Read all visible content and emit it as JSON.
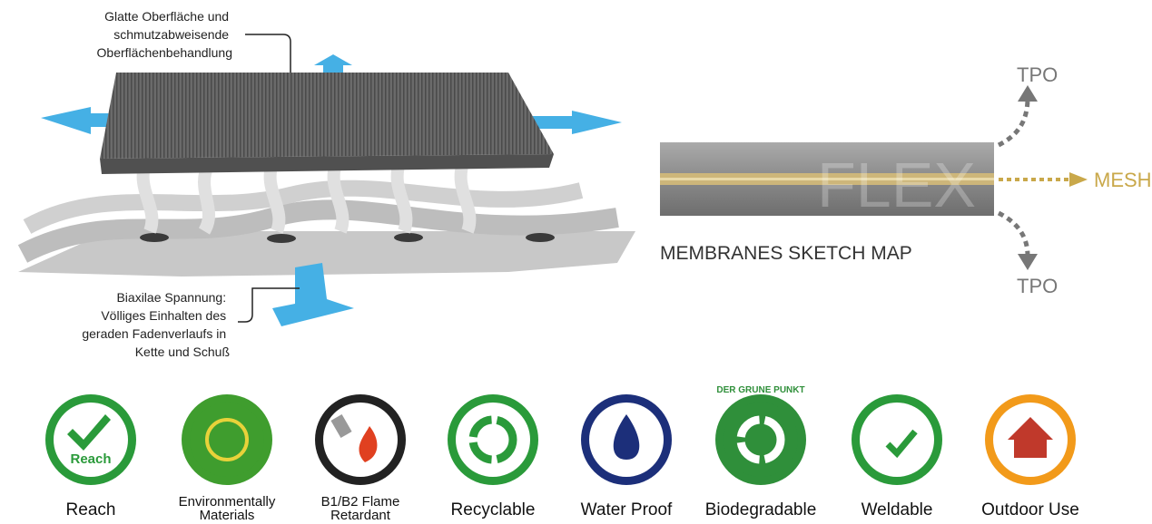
{
  "illustration": {
    "top_note": [
      "Glatte Oberfläche und",
      "schmutzabweisende",
      "Oberflächenbehandlung"
    ],
    "bottom_note": [
      "Biaxilae Spannung:",
      "Völliges Einhalten des",
      "geraden Fadenverlaufs in",
      "Kette und Schuß"
    ]
  },
  "sketch": {
    "title": "MEMBRANES SKETCH MAP",
    "watermark": "FLEX",
    "top_layer": "TPO",
    "middle_layer": "MESH",
    "bottom_layer": "TPO"
  },
  "features": [
    {
      "label": "Reach",
      "icon_text": "Reach"
    },
    {
      "label": [
        "Environmentally",
        "Materials"
      ]
    },
    {
      "label": [
        "B1/B2 Flame",
        "Retardant"
      ]
    },
    {
      "label": "Recyclable"
    },
    {
      "label": "Water Proof"
    },
    {
      "label": "Biodegradable",
      "icon_text": "DER GRUNE PUNKT"
    },
    {
      "label": "Weldable"
    },
    {
      "label": "Outdoor Use"
    }
  ]
}
